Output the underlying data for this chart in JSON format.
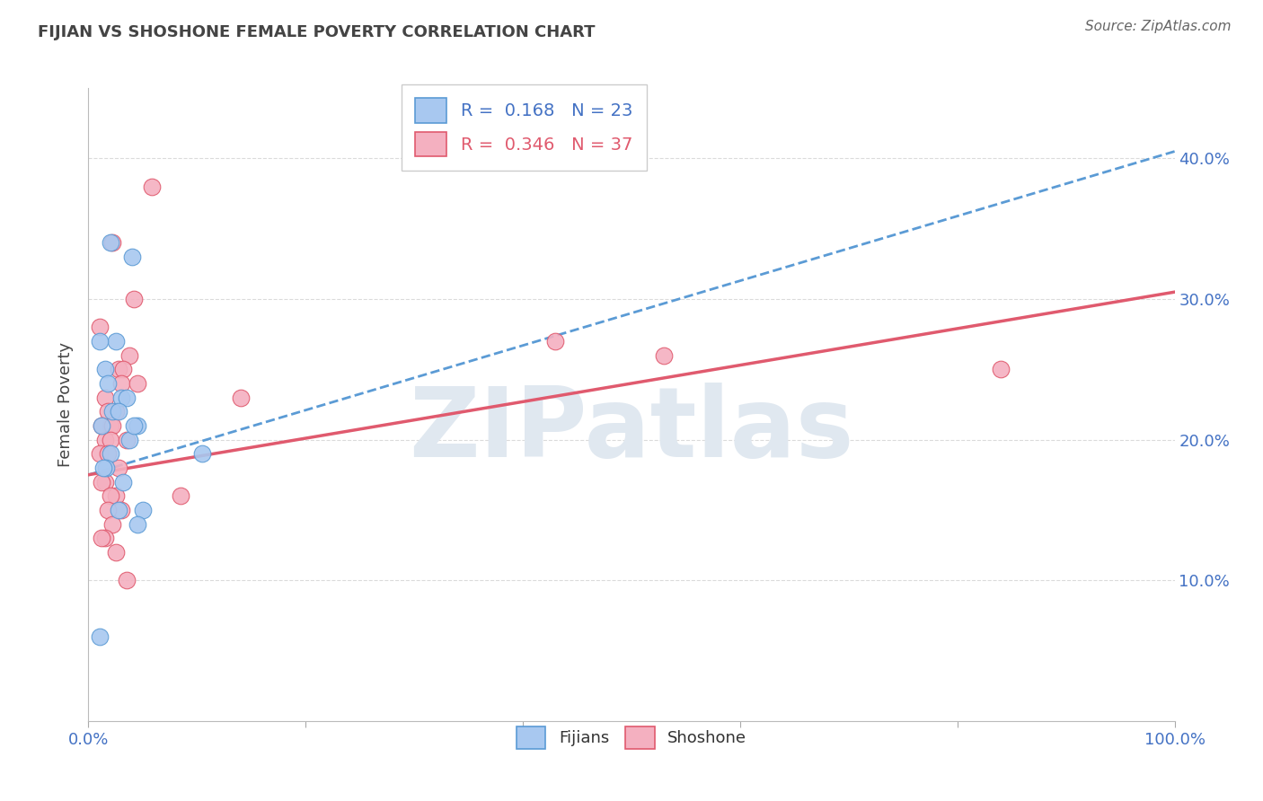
{
  "title": "FIJIAN VS SHOSHONE FEMALE POVERTY CORRELATION CHART",
  "source": "Source: ZipAtlas.com",
  "ylabel": "Female Poverty",
  "xlim": [
    0,
    100
  ],
  "ylim": [
    0,
    45
  ],
  "fijians_x": [
    2.0,
    4.0,
    2.5,
    1.0,
    1.5,
    1.8,
    3.0,
    2.2,
    3.5,
    2.8,
    1.2,
    3.8,
    4.5,
    2.0,
    1.6,
    4.2,
    1.4,
    3.2,
    5.0,
    2.8,
    10.5,
    4.5,
    1.0
  ],
  "fijians_y": [
    34,
    33,
    27,
    27,
    25,
    24,
    23,
    22,
    23,
    22,
    21,
    20,
    21,
    19,
    18,
    21,
    18,
    17,
    15,
    15,
    19,
    14,
    6
  ],
  "shoshone_x": [
    5.8,
    2.2,
    4.2,
    1.0,
    3.8,
    2.8,
    3.2,
    3.0,
    4.5,
    1.5,
    2.5,
    1.8,
    2.0,
    1.2,
    2.2,
    1.5,
    2.0,
    3.5,
    1.0,
    1.8,
    2.8,
    1.5,
    1.2,
    2.5,
    2.0,
    3.0,
    1.8,
    2.2,
    1.5,
    1.2,
    2.5,
    3.5,
    43.0,
    53.0,
    8.5,
    14.0,
    84.0
  ],
  "shoshone_y": [
    38,
    34,
    30,
    28,
    26,
    25,
    25,
    24,
    24,
    23,
    22,
    22,
    21,
    21,
    21,
    20,
    20,
    20,
    19,
    19,
    18,
    17,
    17,
    16,
    16,
    15,
    15,
    14,
    13,
    13,
    12,
    10,
    27,
    26,
    16,
    23,
    25
  ],
  "fijians_line_x0": 0,
  "fijians_line_y0": 17.5,
  "fijians_line_x1": 100,
  "fijians_line_y1": 40.5,
  "shoshone_line_x0": 0,
  "shoshone_line_y0": 17.5,
  "shoshone_line_x1": 100,
  "shoshone_line_y1": 30.5,
  "fijians_R": 0.168,
  "fijians_N": 23,
  "shoshone_R": 0.346,
  "shoshone_N": 37,
  "fijians_dot_color": "#a8c8f0",
  "fijians_dot_edge": "#5b9bd5",
  "fijians_line_color": "#5b9bd5",
  "shoshone_dot_color": "#f4b0c0",
  "shoshone_dot_edge": "#e05a6e",
  "shoshone_line_color": "#e05a6e",
  "background_color": "#ffffff",
  "grid_color": "#cccccc",
  "title_color": "#444444",
  "watermark": "ZIPatlas",
  "watermark_color": "#e0e8f0",
  "ytick_positions": [
    10,
    20,
    30,
    40
  ],
  "ytick_labels": [
    "10.0%",
    "20.0%",
    "30.0%",
    "40.0%"
  ],
  "xtick_positions": [
    0,
    20,
    40,
    60,
    80,
    100
  ],
  "xtick_labels": [
    "0.0%",
    "",
    "",
    "",
    "",
    "100.0%"
  ],
  "axis_tick_color": "#4472c4",
  "legend_text_fij": "#4472c4",
  "legend_text_sho": "#e05a6e"
}
